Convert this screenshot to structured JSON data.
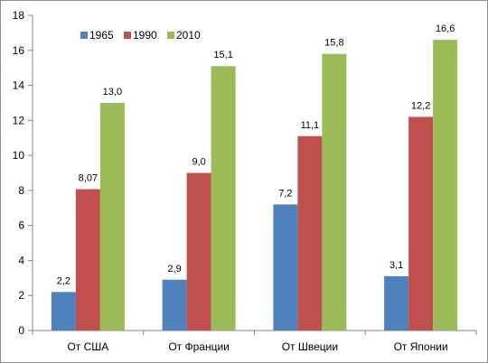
{
  "chart_data": {
    "type": "bar",
    "title": "",
    "xlabel": "",
    "ylabel": "",
    "ylim": [
      0,
      18
    ],
    "yticks": [
      0,
      2,
      4,
      6,
      8,
      10,
      12,
      14,
      16,
      18
    ],
    "grid": false,
    "legend_position": "top-left",
    "categories": [
      "От США",
      "От Франции",
      "От Швеции",
      "От Японии"
    ],
    "series": [
      {
        "name": "1965",
        "color": "#4f81bd",
        "values": [
          2.2,
          2.9,
          7.2,
          3.1
        ],
        "labels": [
          "2,2",
          "2,9",
          "7,2",
          "3,1"
        ]
      },
      {
        "name": "1990",
        "color": "#c0504d",
        "values": [
          8.07,
          9.0,
          11.1,
          12.2
        ],
        "labels": [
          "8,07",
          "9,0",
          "11,1",
          "12,2"
        ]
      },
      {
        "name": "2010",
        "color": "#9bbb59",
        "values": [
          13.0,
          15.1,
          15.8,
          16.6
        ],
        "labels": [
          "13,0",
          "15,1",
          "15,8",
          "16,6"
        ]
      }
    ]
  }
}
